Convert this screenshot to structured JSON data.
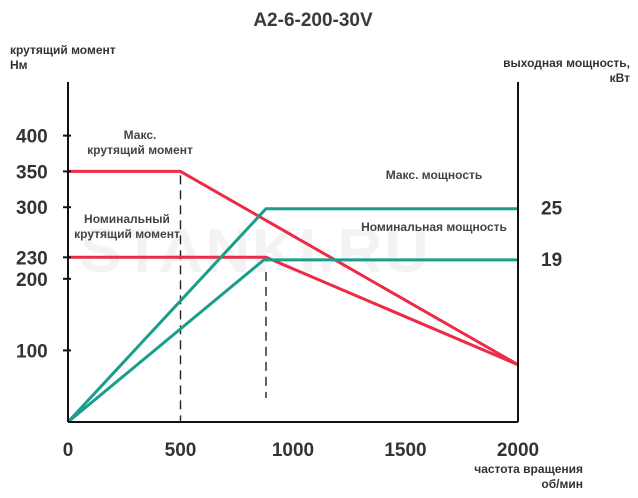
{
  "chart_data": {
    "type": "line",
    "title": "A2-6-200-30V",
    "watermark": "STANKI.RU",
    "ylabel_left": [
      "крутящий момент",
      "Нм"
    ],
    "ylabel_right": [
      "выходная мощность,",
      "кВт"
    ],
    "xlabel": [
      "частота вращения",
      "об/мин"
    ],
    "x_ticks": [
      0,
      500,
      1000,
      1500,
      2000
    ],
    "y_left_ticks": [
      100,
      200,
      230,
      300,
      350,
      400
    ],
    "y_right_ticks": [
      19,
      25
    ],
    "xlim": [
      0,
      2000
    ],
    "ylim_left": [
      0,
      420
    ],
    "ylim_right": [
      0,
      35.24
    ],
    "reference_lines_x": [
      500,
      880
    ],
    "series": [
      {
        "name": "Макс. крутящий момент",
        "axis": "left",
        "color": "#ee2b47",
        "x": [
          0,
          500,
          2000
        ],
        "y": [
          350,
          350,
          80
        ]
      },
      {
        "name": "Номинальный крутящий момент",
        "axis": "left",
        "color": "#ee2b47",
        "x": [
          0,
          880,
          2000
        ],
        "y": [
          230,
          230,
          80
        ]
      },
      {
        "name": "Макс. мощность",
        "axis": "right",
        "color": "#1a9e8a",
        "x": [
          0,
          880,
          2000
        ],
        "y": [
          0,
          25,
          25
        ]
      },
      {
        "name": "Номинальная мощность",
        "axis": "right",
        "color": "#1a9e8a",
        "x": [
          0,
          870,
          2000
        ],
        "y": [
          0,
          19,
          19
        ]
      }
    ],
    "annotations": [
      {
        "series": 0,
        "lines": [
          "Макс.",
          "крутящий момент"
        ]
      },
      {
        "series": 1,
        "lines": [
          "Номинальный",
          "крутящий момент"
        ]
      },
      {
        "series": 2,
        "lines": [
          "Макс.  мощность"
        ]
      },
      {
        "series": 3,
        "lines": [
          "Номинальная мощность"
        ]
      }
    ]
  }
}
